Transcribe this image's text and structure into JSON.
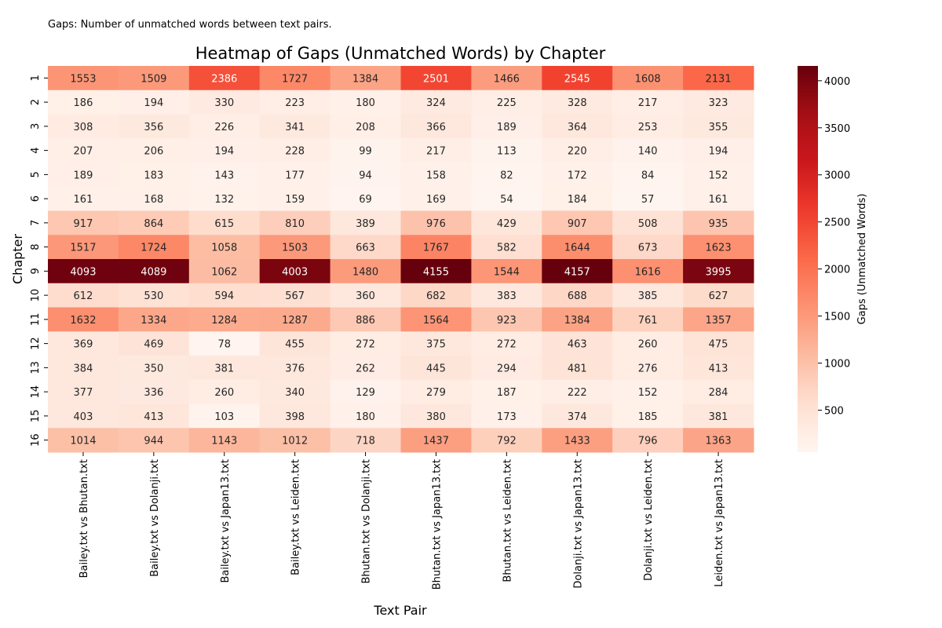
{
  "note": "Gaps: Number of unmatched words between text pairs.",
  "chart_data": {
    "type": "heatmap",
    "title": "Heatmap of Gaps (Unmatched Words) by Chapter",
    "xlabel": "Text Pair",
    "ylabel": "Chapter",
    "colorbar_label": "Gaps (Unmatched Words)",
    "colormap": "Reds",
    "vmin": 54,
    "vmax": 4157,
    "colorbar_ticks": [
      "500",
      "1000",
      "1500",
      "2000",
      "2500",
      "3000",
      "3500",
      "4000"
    ],
    "columns": [
      "Bailey.txt vs Bhutan.txt",
      "Bailey.txt vs Dolanji.txt",
      "Bailey.txt vs Japan13.txt",
      "Bailey.txt vs Leiden.txt",
      "Bhutan.txt vs Dolanji.txt",
      "Bhutan.txt vs Japan13.txt",
      "Bhutan.txt vs Leiden.txt",
      "Dolanji.txt vs Japan13.txt",
      "Dolanji.txt vs Leiden.txt",
      "Leiden.txt vs Japan13.txt"
    ],
    "rows": [
      "1",
      "2",
      "3",
      "4",
      "5",
      "6",
      "7",
      "8",
      "9",
      "10",
      "11",
      "12",
      "13",
      "14",
      "15",
      "16"
    ],
    "values": [
      [
        1553,
        1509,
        2386,
        1727,
        1384,
        2501,
        1466,
        2545,
        1608,
        2131
      ],
      [
        186,
        194,
        330,
        223,
        180,
        324,
        225,
        328,
        217,
        323
      ],
      [
        308,
        356,
        226,
        341,
        208,
        366,
        189,
        364,
        253,
        355
      ],
      [
        207,
        206,
        194,
        228,
        99,
        217,
        113,
        220,
        140,
        194
      ],
      [
        189,
        183,
        143,
        177,
        94,
        158,
        82,
        172,
        84,
        152
      ],
      [
        161,
        168,
        132,
        159,
        69,
        169,
        54,
        184,
        57,
        161
      ],
      [
        917,
        864,
        615,
        810,
        389,
        976,
        429,
        907,
        508,
        935
      ],
      [
        1517,
        1724,
        1058,
        1503,
        663,
        1767,
        582,
        1644,
        673,
        1623
      ],
      [
        4093,
        4089,
        1062,
        4003,
        1480,
        4155,
        1544,
        4157,
        1616,
        3995
      ],
      [
        612,
        530,
        594,
        567,
        360,
        682,
        383,
        688,
        385,
        627
      ],
      [
        1632,
        1334,
        1284,
        1287,
        886,
        1564,
        923,
        1384,
        761,
        1357
      ],
      [
        369,
        469,
        78,
        455,
        272,
        375,
        272,
        463,
        260,
        475
      ],
      [
        384,
        350,
        381,
        376,
        262,
        445,
        294,
        481,
        276,
        413
      ],
      [
        377,
        336,
        260,
        340,
        129,
        279,
        187,
        222,
        152,
        284
      ],
      [
        403,
        413,
        103,
        398,
        180,
        380,
        173,
        374,
        185,
        381
      ],
      [
        1014,
        944,
        1143,
        1012,
        718,
        1437,
        792,
        1433,
        796,
        1363
      ]
    ]
  }
}
